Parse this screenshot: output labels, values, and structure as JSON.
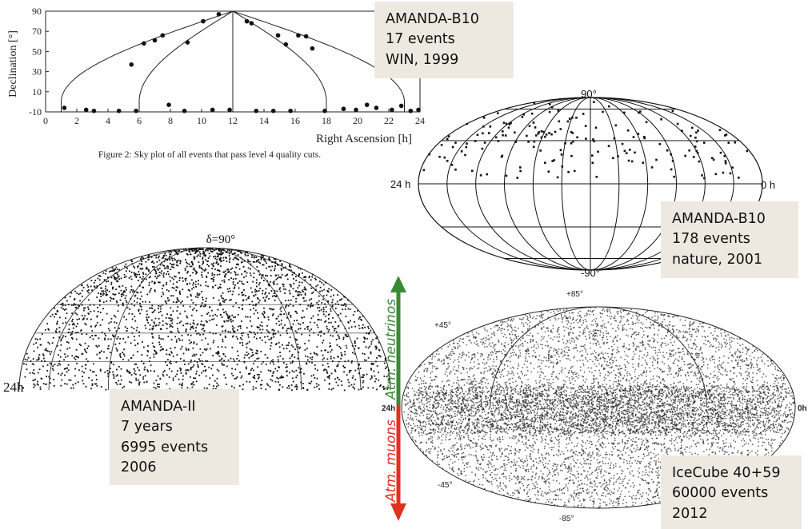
{
  "annotations": {
    "b10_1999": [
      "AMANDA-B10",
      "17 events",
      "WIN, 1999"
    ],
    "b10_2001": [
      "AMANDA-B10",
      "178 events",
      "nature, 2001"
    ],
    "amanda_ii": [
      "AMANDA-II",
      "7 years",
      "6995 events",
      "2006"
    ],
    "icecube": [
      "IceCube 40+59",
      "60000 events",
      "2012"
    ]
  },
  "arrow": {
    "up_label": "Atm. neutrinos",
    "down_label": "Atm. muons",
    "up_color": "#3a8a35",
    "down_color": "#e0301e"
  },
  "panel_b10_1999": {
    "caption": "Figure 2: Sky plot of all events that pass level 4 quality cuts."
  },
  "panel_b10_2001": {
    "top_label": "90°",
    "bottom_label": "-90°",
    "left_label": "24 h",
    "right_label": "0 h"
  },
  "panel_amanda_ii": {
    "top_label": "δ=90°",
    "left_label": "24h"
  },
  "panel_icecube": {
    "labels": {
      "p85": "+85°",
      "p45": "+45°",
      "m45": "-45°",
      "m85": "-85°",
      "left": "24h",
      "right": "0h"
    }
  },
  "chart_data": [
    {
      "type": "scatter",
      "xlabel": "Right Ascension [h]",
      "ylabel": "Declination [°]",
      "xlim": [
        0,
        24
      ],
      "ylim": [
        -10,
        90
      ],
      "xticks": [
        0,
        2,
        4,
        6,
        8,
        10,
        12,
        14,
        16,
        18,
        20,
        22,
        24
      ],
      "yticks": [
        -10,
        10,
        30,
        50,
        70,
        90
      ],
      "grid": false,
      "x": [
        1.2,
        2.6,
        3.1,
        4.7,
        5.5,
        5.8,
        6.3,
        7.0,
        7.5,
        7.9,
        8.9,
        9.1,
        10.1,
        10.7,
        11.1,
        11.8,
        12.9,
        13.2,
        13.5,
        14.6,
        14.9,
        15.4,
        15.7,
        16.2,
        16.7,
        17.1,
        17.9,
        19.1,
        19.9,
        20.6,
        21.2,
        22.2,
        22.8,
        23.4,
        23.9
      ],
      "y": [
        -6,
        -8,
        -9,
        -9,
        37,
        -9,
        58,
        61,
        66,
        -3,
        -9,
        59,
        80,
        -8,
        87,
        -8,
        80,
        78,
        -9,
        -9,
        66,
        57,
        -9,
        66,
        65,
        53,
        -9,
        -7,
        -8,
        -3,
        -6,
        -8,
        -4,
        -9,
        -8
      ]
    },
    {
      "type": "scatter",
      "title": "",
      "xlabel": "",
      "ylabel": "",
      "x": [
        24,
        0
      ],
      "y": [
        0,
        0
      ]
    },
    {
      "type": "scatter",
      "xlabel": "",
      "ylabel": ""
    },
    {
      "type": "scatter",
      "xlabel": "",
      "ylabel": ""
    }
  ]
}
